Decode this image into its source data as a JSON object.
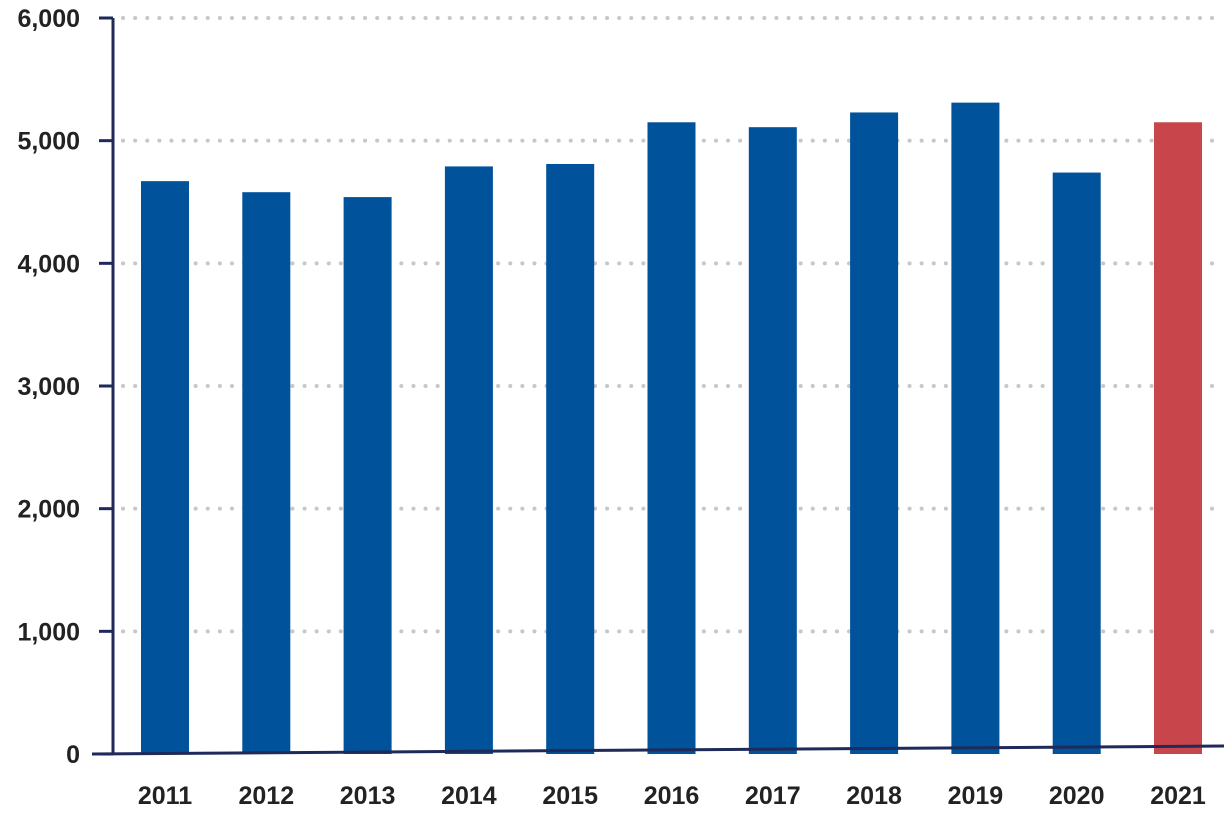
{
  "chart_data": {
    "type": "bar",
    "title": "",
    "xlabel": "",
    "ylabel": "",
    "categories": [
      "2011",
      "2012",
      "2013",
      "2014",
      "2015",
      "2016",
      "2017",
      "2018",
      "2019",
      "2020",
      "2021"
    ],
    "values": [
      4670,
      4580,
      4540,
      4790,
      4810,
      5150,
      5110,
      5230,
      5310,
      4740,
      5150
    ],
    "bar_colors": [
      "#00529b",
      "#00529b",
      "#00529b",
      "#00529b",
      "#00529b",
      "#00529b",
      "#00529b",
      "#00529b",
      "#00529b",
      "#00529b",
      "#c8464b"
    ],
    "ylim": [
      0,
      6000
    ],
    "y_ticks": [
      0,
      1000,
      2000,
      3000,
      4000,
      5000,
      6000
    ],
    "y_tick_labels": [
      "0",
      "1,000",
      "2,000",
      "3,000",
      "4,000",
      "5,000",
      "6,000"
    ],
    "grid": true,
    "grid_style": "dotted",
    "legend": "none",
    "axis_color": "#1e2a5a",
    "grid_color": "#c8c8c8"
  }
}
